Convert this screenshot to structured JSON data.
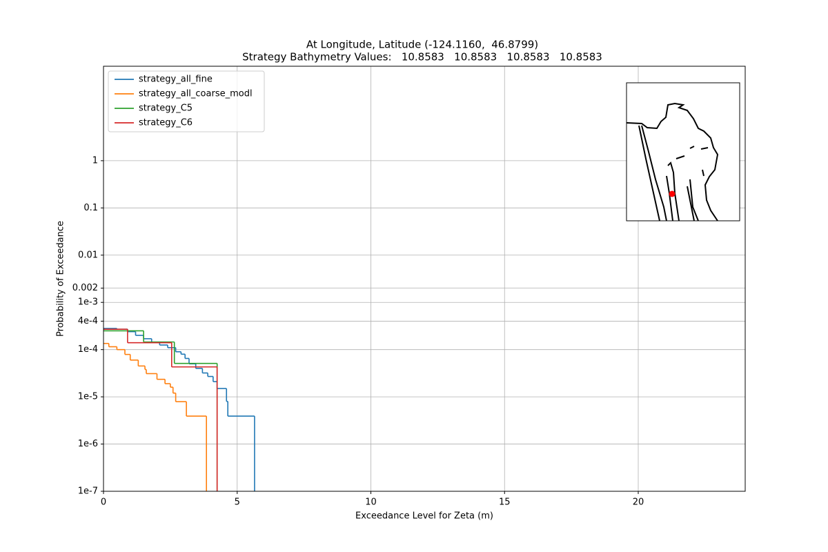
{
  "chart_data": {
    "type": "step",
    "title": "At Longitude, Latitude (-124.1160,  46.8799)",
    "subtitle": "Strategy Bathymetry Values:   10.8583   10.8583   10.8583   10.8583",
    "x_label": "Exceedance Level for Zeta (m)",
    "y_label": "Probability of Exceedance",
    "xlim": [
      0,
      24
    ],
    "xticks": [
      0,
      5,
      10,
      15,
      20
    ],
    "ylim": [
      1e-07,
      100
    ],
    "log_y": true,
    "grid": true,
    "legend": "upper left",
    "yticks": [
      {
        "value": 1e-07,
        "label": "1e-7"
      },
      {
        "value": 1e-06,
        "label": "1e-6"
      },
      {
        "value": 1e-05,
        "label": "1e-5"
      },
      {
        "value": 0.0001,
        "label": "1e-4"
      },
      {
        "value": 0.0004,
        "label": "4e-4"
      },
      {
        "value": 0.001,
        "label": "1e-3"
      },
      0.002,
      0.01,
      0.1,
      1
    ],
    "series": [
      {
        "name": "strategy_all_fine",
        "color": "#1f77b4",
        "x": [
          0.5,
          0.9,
          1.2,
          1.5,
          1.8,
          2.1,
          2.4,
          2.7,
          2.9,
          3.05,
          3.2,
          3.45,
          3.7,
          3.9,
          4.1,
          4.25,
          4.6,
          4.65,
          5.65
        ],
        "values": [
          0.00028,
          0.00027,
          0.00024,
          0.0002,
          0.00017,
          0.00014,
          0.000125,
          0.00011,
          9e-05,
          8e-05,
          6.5e-05,
          5e-05,
          4e-05,
          3.2e-05,
          2.7e-05,
          2.1e-05,
          1.5e-05,
          8e-06,
          3.9e-06
        ]
      },
      {
        "name": "strategy_all_coarse_modl",
        "color": "#ff7f0e",
        "x": [
          0.2,
          0.5,
          0.8,
          1.0,
          1.3,
          1.55,
          1.6,
          2.0,
          2.3,
          2.5,
          2.6,
          2.7,
          3.1,
          3.85
        ],
        "values": [
          0.000135,
          0.000115,
          0.0001,
          7.9e-05,
          6e-05,
          4.5e-05,
          3.8e-05,
          3.1e-05,
          2.35e-05,
          1.9e-05,
          1.6e-05,
          1.2e-05,
          7.9e-06,
          3.9e-06
        ]
      },
      {
        "name": "strategy_C5",
        "color": "#2ca02c",
        "x": [
          1.5,
          2.65,
          4.25
        ],
        "values": [
          0.00025,
          0.000145,
          5.1e-05
        ]
      },
      {
        "name": "strategy_C6",
        "color": "#d62728",
        "x": [
          0.9,
          2.55,
          4.25
        ],
        "values": [
          0.00027,
          0.00014,
          4.3e-05
        ]
      }
    ]
  }
}
